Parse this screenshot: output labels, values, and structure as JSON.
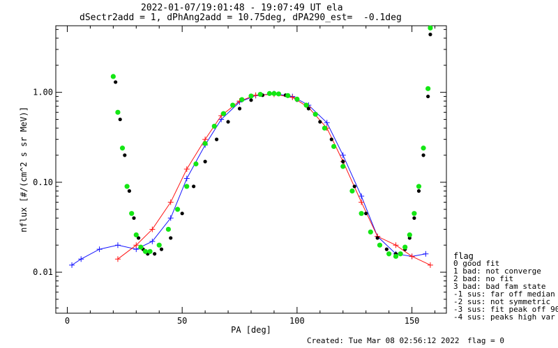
{
  "chart_data": {
    "type": "scatter",
    "title_lines": [
      "2022-01-07/19:01:48 - 19:07:49 UT ela",
      "dSectr2add = 1, dPhAng2add = 10.75deg, dPA290_est=  -0.1deg"
    ],
    "xlabel": "PA [deg]",
    "ylabel": "nflux [#/(cm^2 s sr MeV)]",
    "xlim": [
      -5,
      165
    ],
    "ylim": [
      0.0035,
      5.5
    ],
    "ylog": true,
    "x_ticks": [
      0,
      50,
      100,
      150
    ],
    "x_tick_labels": [
      "0",
      "50",
      "100",
      "150"
    ],
    "y_ticks": [
      0.01,
      0.1,
      1.0
    ],
    "y_tick_labels": [
      "0.01",
      "0.10",
      "1.00"
    ],
    "grid": false,
    "series": [
      {
        "color": "#1414ff",
        "marker": "plus",
        "x": [
          2,
          6,
          14,
          22,
          30,
          37,
          45,
          52,
          60,
          67,
          75,
          82,
          90,
          98,
          105,
          113,
          120,
          128,
          135,
          143,
          150,
          156
        ],
        "y": [
          0.012,
          0.014,
          0.018,
          0.02,
          0.018,
          0.022,
          0.04,
          0.11,
          0.26,
          0.5,
          0.78,
          0.92,
          0.97,
          0.9,
          0.72,
          0.46,
          0.2,
          0.07,
          0.025,
          0.016,
          0.015,
          0.016
        ]
      },
      {
        "color": "#ff1414",
        "marker": "plus",
        "x": [
          22,
          30,
          37,
          45,
          52,
          60,
          67,
          75,
          82,
          90,
          98,
          105,
          113,
          120,
          128,
          135,
          143,
          150,
          158
        ],
        "y": [
          0.014,
          0.02,
          0.03,
          0.06,
          0.14,
          0.3,
          0.55,
          0.8,
          0.93,
          0.95,
          0.88,
          0.68,
          0.4,
          0.17,
          0.06,
          0.025,
          0.02,
          0.015,
          0.012
        ]
      },
      {
        "color": "#000000",
        "marker": "dot",
        "x": [
          21,
          23,
          25,
          27,
          29,
          31,
          33,
          35,
          38,
          41,
          45,
          50,
          55,
          60,
          65,
          70,
          75,
          80,
          85,
          90,
          95,
          100,
          105,
          110,
          115,
          120,
          125,
          130,
          135,
          139,
          143,
          145,
          147,
          149,
          151,
          153,
          155,
          157,
          158
        ],
        "y": [
          1.3,
          0.5,
          0.2,
          0.08,
          0.04,
          0.024,
          0.018,
          0.016,
          0.016,
          0.018,
          0.024,
          0.045,
          0.09,
          0.17,
          0.3,
          0.47,
          0.66,
          0.82,
          0.93,
          0.96,
          0.93,
          0.82,
          0.66,
          0.47,
          0.3,
          0.17,
          0.09,
          0.045,
          0.024,
          0.018,
          0.016,
          0.016,
          0.018,
          0.024,
          0.04,
          0.08,
          0.2,
          0.9,
          4.4
        ]
      },
      {
        "color": "#14e614",
        "marker": "dot",
        "x": [
          20,
          22,
          24,
          26,
          28,
          30,
          32,
          34,
          36,
          40,
          44,
          48,
          52,
          56,
          60,
          64,
          68,
          72,
          76,
          80,
          84,
          88,
          90,
          92,
          96,
          100,
          104,
          108,
          112,
          116,
          120,
          124,
          128,
          132,
          136,
          140,
          143,
          145,
          147,
          149,
          151,
          153,
          155,
          157,
          158
        ],
        "y": [
          1.5,
          0.6,
          0.24,
          0.09,
          0.045,
          0.026,
          0.019,
          0.017,
          0.017,
          0.02,
          0.03,
          0.05,
          0.09,
          0.16,
          0.27,
          0.42,
          0.58,
          0.72,
          0.83,
          0.91,
          0.95,
          0.97,
          0.97,
          0.96,
          0.92,
          0.84,
          0.72,
          0.57,
          0.4,
          0.25,
          0.15,
          0.08,
          0.045,
          0.028,
          0.02,
          0.016,
          0.015,
          0.016,
          0.019,
          0.026,
          0.045,
          0.09,
          0.24,
          1.1,
          5.2
        ]
      }
    ],
    "legend": {
      "title": "flag",
      "position": "right",
      "items": [
        "0 good fit",
        "1 bad: not converge",
        "2 bad: no fit",
        "3 bad: bad fam state",
        "-1 sus: far off median",
        "-2 sus: not symmetric",
        "-3 sus: fit peak off 90",
        "-4 sus: peaks high var"
      ]
    },
    "footer_created": "Created: Tue Mar 08 02:56:12 2022",
    "footer_flag": "flag = 0"
  }
}
